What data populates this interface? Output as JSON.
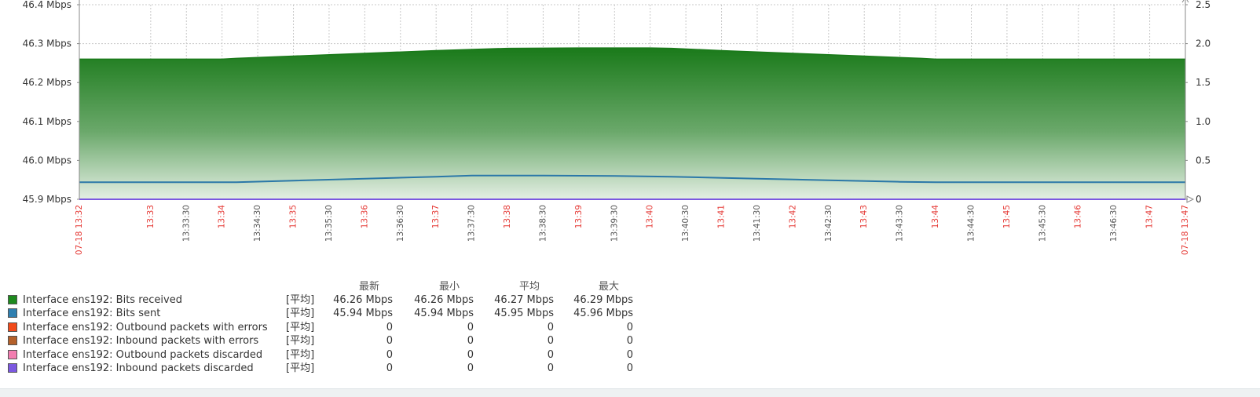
{
  "chart_data": {
    "type": "area",
    "y_left": {
      "min": 45.9,
      "max": 46.4,
      "ticks": [
        {
          "value": 46.4,
          "label": "46.4 Mbps"
        },
        {
          "value": 46.3,
          "label": "46.3 Mbps"
        },
        {
          "value": 46.2,
          "label": "46.2 Mbps"
        },
        {
          "value": 46.1,
          "label": "46.1 Mbps"
        },
        {
          "value": 46.0,
          "label": "46.0 Mbps"
        },
        {
          "value": 45.9,
          "label": "45.9 Mbps"
        }
      ]
    },
    "y_right": {
      "min": 0,
      "max": 2.5,
      "ticks": [
        {
          "value": 2.5,
          "label": "2.5"
        },
        {
          "value": 2.0,
          "label": "2.0"
        },
        {
          "value": 1.5,
          "label": "1.5"
        },
        {
          "value": 1.0,
          "label": "1.0"
        },
        {
          "value": 0.5,
          "label": "0.5"
        },
        {
          "value": 0,
          "label": "0"
        }
      ]
    },
    "x_ticks": [
      {
        "label": "07-18 13:32",
        "major": true
      },
      {
        "label": "13:33",
        "major": true
      },
      {
        "label": "13:33:30",
        "major": false
      },
      {
        "label": "13:34",
        "major": true
      },
      {
        "label": "13:34:30",
        "major": false
      },
      {
        "label": "13:35",
        "major": true
      },
      {
        "label": "13:35:30",
        "major": false
      },
      {
        "label": "13:36",
        "major": true
      },
      {
        "label": "13:36:30",
        "major": false
      },
      {
        "label": "13:37",
        "major": true
      },
      {
        "label": "13:37:30",
        "major": false
      },
      {
        "label": "13:38",
        "major": true
      },
      {
        "label": "13:38:30",
        "major": false
      },
      {
        "label": "13:39",
        "major": true
      },
      {
        "label": "13:39:30",
        "major": false
      },
      {
        "label": "13:40",
        "major": true
      },
      {
        "label": "13:40:30",
        "major": false
      },
      {
        "label": "13:41",
        "major": true
      },
      {
        "label": "13:41:30",
        "major": false
      },
      {
        "label": "13:42",
        "major": true
      },
      {
        "label": "13:42:30",
        "major": false
      },
      {
        "label": "13:43",
        "major": true
      },
      {
        "label": "13:43:30",
        "major": false
      },
      {
        "label": "13:44",
        "major": true
      },
      {
        "label": "13:44:30",
        "major": false
      },
      {
        "label": "13:45",
        "major": true
      },
      {
        "label": "13:45:30",
        "major": false
      },
      {
        "label": "13:46",
        "major": true
      },
      {
        "label": "13:46:30",
        "major": false
      },
      {
        "label": "13:47",
        "major": true
      },
      {
        "label": "07-18 13:47",
        "major": true
      }
    ],
    "x_minutes": [
      0,
      1,
      1.5,
      2,
      2.5,
      3,
      3.5,
      4,
      4.5,
      5,
      5.5,
      6,
      6.5,
      7,
      7.5,
      8,
      8.5,
      9,
      9.5,
      10,
      10.5,
      11,
      11.5,
      12,
      12.5,
      13,
      13.5,
      14,
      14.5,
      15,
      15.5
    ],
    "series": [
      {
        "name": "Interface ens192: Bits received",
        "color": "#1a7a1a",
        "style": "filled-gradient",
        "points": [
          [
            0,
            46.26
          ],
          [
            2,
            46.26
          ],
          [
            2.2,
            46.262
          ],
          [
            3,
            46.268
          ],
          [
            4,
            46.275
          ],
          [
            5,
            46.282
          ],
          [
            6,
            46.288
          ],
          [
            7,
            46.289
          ],
          [
            8,
            46.289
          ],
          [
            8.3,
            46.288
          ],
          [
            9,
            46.282
          ],
          [
            10,
            46.275
          ],
          [
            11,
            46.268
          ],
          [
            11.8,
            46.262
          ],
          [
            12,
            46.26
          ],
          [
            15.5,
            46.26
          ]
        ]
      },
      {
        "name": "Interface ens192: Bits sent",
        "color": "#2b78a8",
        "style": "line",
        "points": [
          [
            0,
            45.944
          ],
          [
            2.2,
            45.944
          ],
          [
            3,
            45.948
          ],
          [
            4,
            45.953
          ],
          [
            5,
            45.958
          ],
          [
            5.5,
            45.961
          ],
          [
            6.5,
            45.961
          ],
          [
            7.5,
            45.96
          ],
          [
            8.3,
            45.958
          ],
          [
            9.5,
            45.953
          ],
          [
            10.5,
            45.949
          ],
          [
            11.5,
            45.945
          ],
          [
            12,
            45.944
          ],
          [
            15.5,
            45.944
          ]
        ]
      }
    ]
  },
  "legend": {
    "headers": [
      "最新",
      "最小",
      "平均",
      "最大"
    ],
    "rows": [
      {
        "color": "#1e8a1e",
        "name": "Interface ens192: Bits received",
        "func": "[平均]",
        "values": [
          "46.26 Mbps",
          "46.26 Mbps",
          "46.27 Mbps",
          "46.29 Mbps"
        ]
      },
      {
        "color": "#2f7fb0",
        "name": "Interface ens192: Bits sent",
        "func": "[平均]",
        "values": [
          "45.94 Mbps",
          "45.94 Mbps",
          "45.95 Mbps",
          "45.96 Mbps"
        ]
      },
      {
        "color": "#f24a1a",
        "name": "Interface ens192: Outbound packets with errors",
        "func": "[平均]",
        "values": [
          "0",
          "0",
          "0",
          "0"
        ]
      },
      {
        "color": "#b4602a",
        "name": "Interface ens192: Inbound packets with errors",
        "func": "[平均]",
        "values": [
          "0",
          "0",
          "0",
          "0"
        ]
      },
      {
        "color": "#f27db0",
        "name": "Interface ens192: Outbound packets discarded",
        "func": "[平均]",
        "values": [
          "0",
          "0",
          "0",
          "0"
        ]
      },
      {
        "color": "#7b58e0",
        "name": "Interface ens192: Inbound packets discarded",
        "func": "[平均]",
        "values": [
          "0",
          "0",
          "0",
          "0"
        ]
      }
    ]
  },
  "colors": {
    "major_tick_label": "#e53935",
    "minor_tick_label": "#555555",
    "grid": "#c8c8c8",
    "axis": "#888888",
    "baseline": "#7b58e0"
  }
}
